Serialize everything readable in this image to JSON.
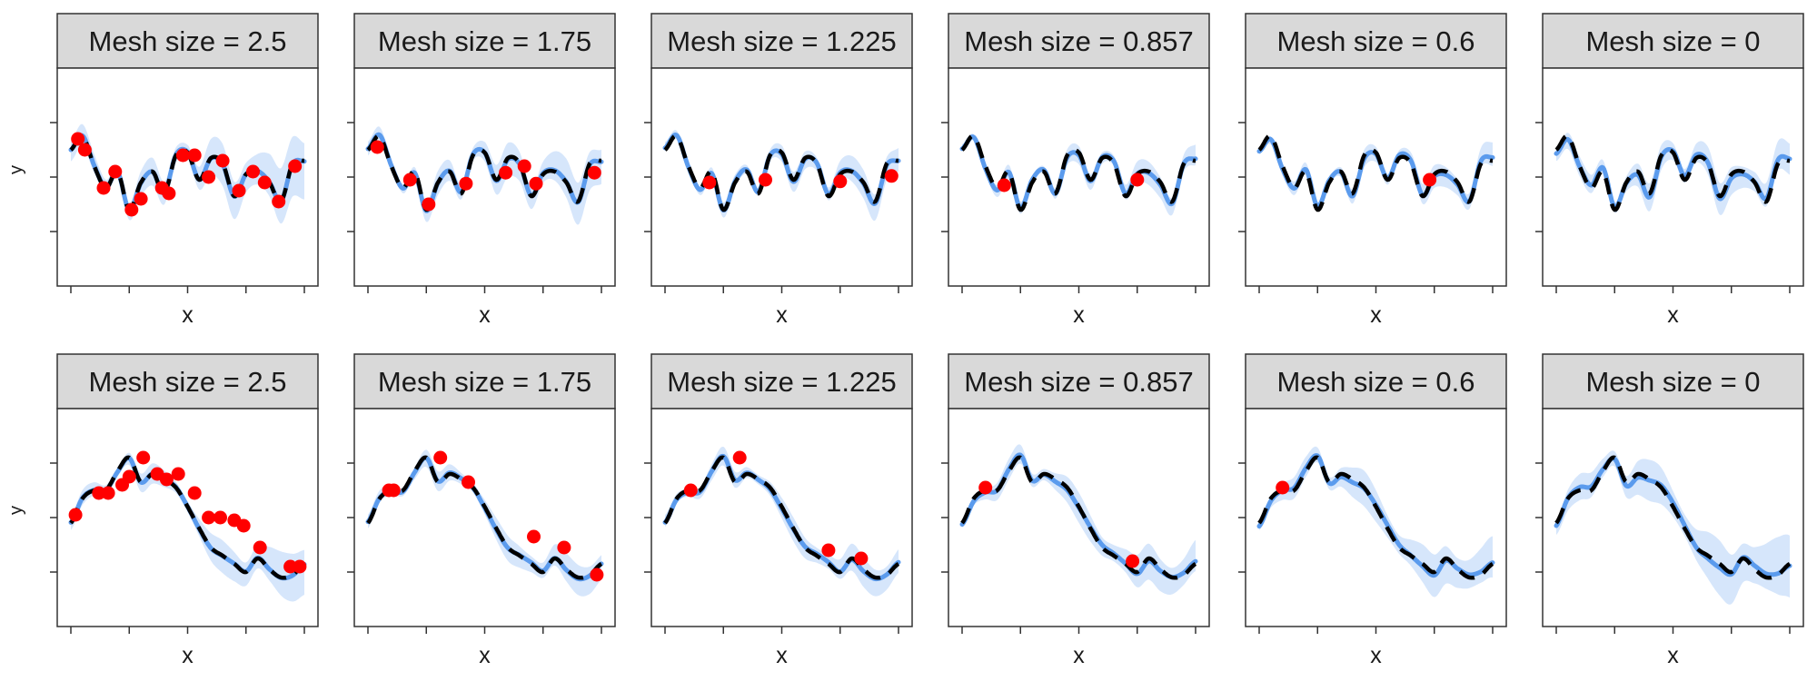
{
  "chart_data": {
    "type": "line",
    "layout": {
      "rows": 2,
      "cols": 6
    },
    "xlabel": "x",
    "ylabel": "y",
    "xlim": [
      0,
      10
    ],
    "ylim": [
      -2,
      2
    ],
    "x_ticks": [
      0,
      2.5,
      5,
      7.5,
      10
    ],
    "y_ticks": [
      -1,
      0,
      1
    ],
    "grid": false,
    "legend": "none",
    "facet_labels": [
      "Mesh size = 2.5",
      "Mesh size = 1.75",
      "Mesh size = 1.225",
      "Mesh size = 0.857",
      "Mesh size = 0.6",
      "Mesh size = 0"
    ],
    "colors": {
      "true_function": "#000000",
      "estimate": "#5b9bed",
      "band": "#d6e6fb",
      "observations": "#ff0000",
      "strip_fill": "#d9d9d9",
      "panel_border": "#333333"
    },
    "series_styles": {
      "true_function": "dashed black line",
      "estimate": "solid blue line",
      "band": "light blue uncertainty band",
      "observations": "red points"
    },
    "rows": [
      {
        "truth": {
          "x": [
            0,
            0.5,
            1,
            1.5,
            2,
            2.5,
            3,
            3.5,
            4,
            4.5,
            5,
            5.5,
            6,
            6.5,
            7,
            7.5,
            8,
            8.5,
            9,
            9.5,
            10
          ],
          "y": [
            0.5,
            0.75,
            0.2,
            -0.2,
            0.1,
            -0.6,
            -0.1,
            0.1,
            -0.3,
            0.4,
            0.45,
            -0.05,
            0.35,
            0.25,
            -0.35,
            0.05,
            0.1,
            -0.1,
            -0.45,
            0.25,
            0.3
          ]
        },
        "panels": [
          {
            "label": "Mesh size = 2.5",
            "band_width": [
              0.15,
              0.2,
              0.5
            ],
            "points": {
              "x": [
                0.3,
                0.6,
                1.4,
                1.9,
                2.6,
                3.0,
                3.9,
                4.2,
                4.8,
                5.3,
                5.9,
                6.5,
                7.2,
                7.8,
                8.3,
                8.9,
                9.6
              ],
              "y": [
                0.7,
                0.5,
                -0.2,
                0.1,
                -0.6,
                -0.4,
                -0.2,
                -0.3,
                0.4,
                0.4,
                0.0,
                0.3,
                -0.25,
                0.1,
                -0.1,
                -0.45,
                0.2
              ]
            }
          },
          {
            "label": "Mesh size = 1.75",
            "band_width": [
              0.1,
              0.2,
              0.35
            ],
            "points": {
              "x": [
                0.4,
                1.8,
                2.6,
                4.2,
                5.9,
                6.7,
                7.2,
                9.7
              ],
              "y": [
                0.55,
                -0.05,
                -0.5,
                -0.12,
                0.08,
                0.2,
                -0.12,
                0.08
              ]
            }
          },
          {
            "label": "Mesh size = 1.225",
            "band_width": [
              0.08,
              0.12,
              0.25
            ],
            "points": {
              "x": [
                1.9,
                4.3,
                7.5,
                9.7
              ],
              "y": [
                -0.1,
                -0.05,
                -0.08,
                0.02
              ]
            }
          },
          {
            "label": "Mesh size = 0.857",
            "band_width": [
              0.08,
              0.12,
              0.2
            ],
            "points": {
              "x": [
                1.8,
                7.5
              ],
              "y": [
                -0.15,
                -0.05
              ]
            }
          },
          {
            "label": "Mesh size = 0.6",
            "band_width": [
              0.08,
              0.12,
              0.2
            ],
            "points": {
              "x": [
                7.3
              ],
              "y": [
                -0.05
              ]
            }
          },
          {
            "label": "Mesh size = 0",
            "band_width": [
              0.12,
              0.2,
              0.25
            ],
            "points": {
              "x": [],
              "y": []
            }
          }
        ]
      },
      {
        "truth": {
          "x": [
            0,
            0.5,
            1,
            1.5,
            2,
            2.5,
            3,
            3.5,
            4,
            4.5,
            5,
            5.5,
            6,
            6.5,
            7,
            7.5,
            8,
            8.5,
            9,
            9.5,
            10
          ],
          "y": [
            -0.1,
            0.35,
            0.5,
            0.5,
            0.85,
            1.1,
            0.65,
            0.8,
            0.7,
            0.55,
            0.2,
            -0.2,
            -0.55,
            -0.7,
            -0.85,
            -1.0,
            -0.75,
            -0.95,
            -1.1,
            -1.05,
            -0.85
          ]
        },
        "panels": [
          {
            "label": "Mesh size = 2.5",
            "band_width": [
              0.1,
              0.15,
              0.4
            ],
            "points": {
              "x": [
                0.2,
                1.2,
                1.6,
                2.2,
                2.5,
                3.1,
                3.7,
                4.1,
                4.6,
                5.3,
                5.9,
                6.4,
                7.0,
                7.4,
                8.1,
                9.4,
                9.8
              ],
              "y": [
                0.05,
                0.45,
                0.45,
                0.6,
                0.75,
                1.1,
                0.8,
                0.7,
                0.8,
                0.45,
                0.0,
                0.0,
                -0.05,
                -0.15,
                -0.55,
                -0.9,
                -0.9
              ]
            }
          },
          {
            "label": "Mesh size = 1.75",
            "band_width": [
              0.1,
              0.15,
              0.25
            ],
            "points": {
              "x": [
                0.9,
                1.1,
                3.1,
                4.3,
                7.1,
                8.4,
                9.8
              ],
              "y": [
                0.5,
                0.5,
                1.1,
                0.65,
                -0.35,
                -0.55,
                -1.05
              ]
            }
          },
          {
            "label": "Mesh size = 1.225",
            "band_width": [
              0.1,
              0.15,
              0.25
            ],
            "points": {
              "x": [
                1.1,
                3.2,
                7.0,
                8.4
              ],
              "y": [
                0.5,
                1.1,
                -0.6,
                -0.75
              ]
            }
          },
          {
            "label": "Mesh size = 0.857",
            "band_width": [
              0.1,
              0.2,
              0.3
            ],
            "points": {
              "x": [
                1.0,
                7.3
              ],
              "y": [
                0.55,
                -0.8
              ]
            }
          },
          {
            "label": "Mesh size = 0.6",
            "band_width": [
              0.1,
              0.25,
              0.35
            ],
            "points": {
              "x": [
                1.0
              ],
              "y": [
                0.55
              ]
            }
          },
          {
            "label": "Mesh size = 0",
            "band_width": [
              0.15,
              0.3,
              0.5
            ],
            "points": {
              "x": [],
              "y": []
            }
          }
        ]
      }
    ]
  }
}
